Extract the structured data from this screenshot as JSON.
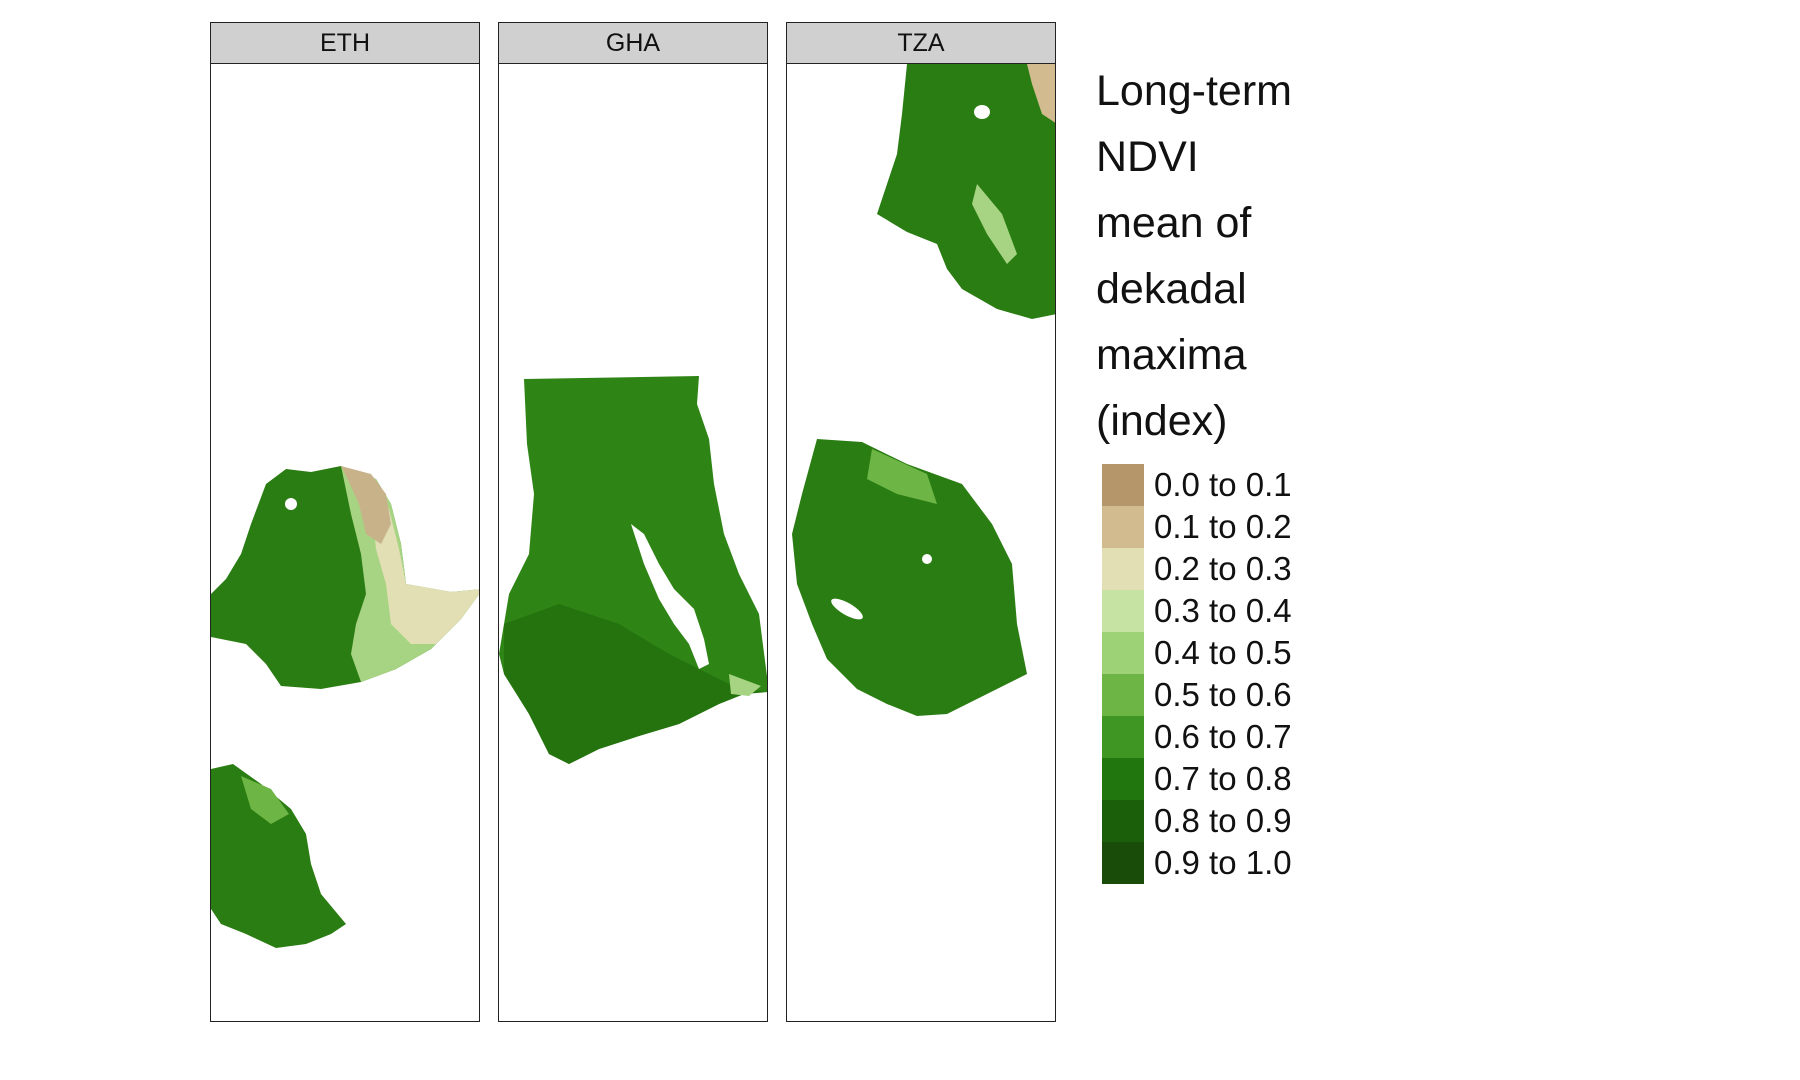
{
  "facets": [
    {
      "label": "ETH"
    },
    {
      "label": "GHA"
    },
    {
      "label": "TZA"
    }
  ],
  "legend": {
    "title_lines": [
      "Long-term",
      "NDVI",
      "mean of",
      "dekadal",
      "maxima",
      "(index)"
    ],
    "items": [
      {
        "label": "0.0 to 0.1",
        "color": "#b5966a"
      },
      {
        "label": "0.1 to 0.2",
        "color": "#d2bc8f"
      },
      {
        "label": "0.2 to 0.3",
        "color": "#e2dfb4"
      },
      {
        "label": "0.3 to 0.4",
        "color": "#c7e3a4"
      },
      {
        "label": "0.4 to 0.5",
        "color": "#9ed277"
      },
      {
        "label": "0.5 to 0.6",
        "color": "#6db645"
      },
      {
        "label": "0.6 to 0.7",
        "color": "#3f9622"
      },
      {
        "label": "0.7 to 0.8",
        "color": "#22760e"
      },
      {
        "label": "0.8 to 0.9",
        "color": "#1c5f0b"
      },
      {
        "label": "0.9 to 1.0",
        "color": "#184c08"
      }
    ]
  }
}
